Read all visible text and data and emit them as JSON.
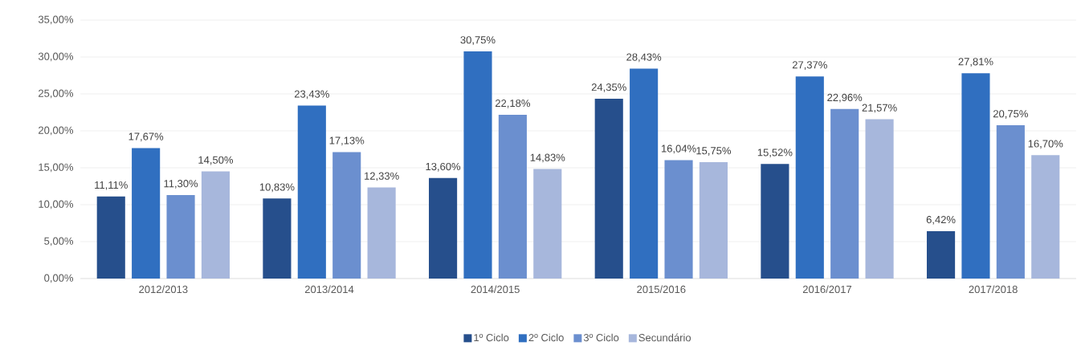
{
  "chart_data": {
    "type": "bar",
    "categories": [
      "2012/2013",
      "2013/2014",
      "2014/2015",
      "2015/2016",
      "2016/2017",
      "2017/2018"
    ],
    "series": [
      {
        "name": "1º Ciclo",
        "color": "#264f8c",
        "values": [
          11.11,
          10.83,
          13.6,
          24.35,
          15.52,
          6.42
        ],
        "value_labels": [
          "11,11%",
          "10,83%",
          "13,60%",
          "24,35%",
          "15,52%",
          "6,42%"
        ]
      },
      {
        "name": "2º Ciclo",
        "color": "#306fc0",
        "values": [
          17.67,
          23.43,
          30.75,
          28.43,
          27.37,
          27.81
        ],
        "value_labels": [
          "17,67%",
          "23,43%",
          "30,75%",
          "28,43%",
          "27,37%",
          "27,81%"
        ]
      },
      {
        "name": "3º Ciclo",
        "color": "#6b8fcf",
        "values": [
          11.3,
          17.13,
          22.18,
          16.04,
          22.96,
          20.75
        ],
        "value_labels": [
          "11,30%",
          "17,13%",
          "22,18%",
          "16,04%",
          "22,96%",
          "20,75%"
        ]
      },
      {
        "name": "Secundário",
        "color": "#a7b7dc",
        "values": [
          14.5,
          12.33,
          14.83,
          15.75,
          21.57,
          16.7
        ],
        "value_labels": [
          "14,50%",
          "12,33%",
          "14,83%",
          "15,75%",
          "21,57%",
          "16,70%"
        ]
      }
    ],
    "ylim": [
      0,
      35
    ],
    "yticks": [
      {
        "value": 0,
        "label": "0,00%"
      },
      {
        "value": 5,
        "label": "5,00%"
      },
      {
        "value": 10,
        "label": "10,00%"
      },
      {
        "value": 15,
        "label": "15,00%"
      },
      {
        "value": 20,
        "label": "20,00%"
      },
      {
        "value": 25,
        "label": "25,00%"
      },
      {
        "value": 30,
        "label": "30,00%"
      },
      {
        "value": 35,
        "label": "35,00%"
      }
    ],
    "grid": "y",
    "legend": "bottom"
  }
}
